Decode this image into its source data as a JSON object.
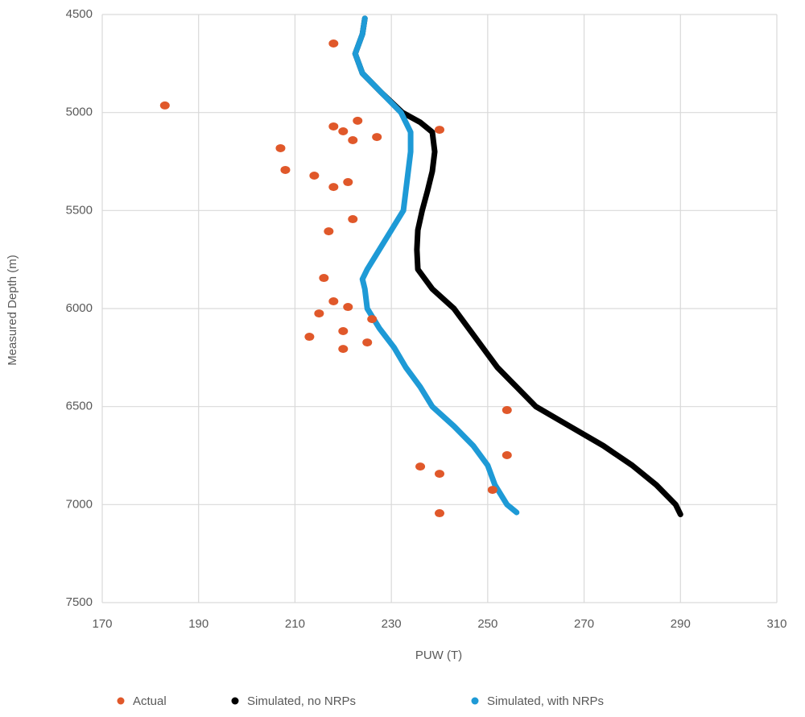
{
  "chart_data": {
    "type": "scatter",
    "xlabel": "PUW (T)",
    "ylabel": "Measured Depth (m)",
    "xlim": [
      170,
      310
    ],
    "xticks": [
      170,
      190,
      210,
      230,
      250,
      270,
      290,
      310
    ],
    "ylim": [
      4500,
      7500
    ],
    "yticks": [
      4500,
      5000,
      5500,
      6000,
      6500,
      7000,
      7500
    ],
    "y_inverted": true,
    "grid": true,
    "legend": "bottom",
    "series": [
      {
        "name": "Actual",
        "color": "#e0582a",
        "mode": "markers",
        "x": [
          218,
          183,
          240,
          218,
          220,
          223,
          222,
          227,
          207,
          208,
          214,
          221,
          218,
          222,
          217,
          216,
          218,
          221,
          215,
          226,
          220,
          213,
          225,
          220,
          254,
          254,
          236,
          240,
          251,
          240
        ],
        "y": [
          4648,
          4964,
          5088,
          5071,
          5096,
          5042,
          5141,
          5125,
          5182,
          5293,
          5322,
          5355,
          5380,
          5544,
          5606,
          5844,
          5963,
          5992,
          6025,
          6054,
          6115,
          6144,
          6173,
          6206,
          6518,
          6748,
          6806,
          6843,
          6925,
          7044
        ]
      },
      {
        "name": "Simulated, no NRPs",
        "color": "#000000",
        "mode": "line",
        "x": [
          224.5,
          224,
          222.5,
          224,
          228,
          232.3,
          236,
          238.5,
          239,
          238.5,
          237.5,
          236.4,
          235.5,
          235.3,
          235.5,
          238.5,
          243,
          246,
          249,
          252,
          256,
          260,
          267,
          274,
          280,
          285,
          289,
          290
        ],
        "y": [
          4520,
          4600,
          4700,
          4800,
          4900,
          5000,
          5050,
          5100,
          5200,
          5300,
          5400,
          5500,
          5600,
          5700,
          5800,
          5900,
          6000,
          6100,
          6200,
          6300,
          6400,
          6500,
          6600,
          6700,
          6800,
          6900,
          7000,
          7050
        ]
      },
      {
        "name": "Simulated, with NRPs",
        "color": "#1e9ad6",
        "mode": "line",
        "x": [
          224.5,
          224,
          222.5,
          224,
          228,
          232,
          234,
          234,
          233.5,
          233,
          232.5,
          230,
          227.5,
          225,
          224,
          224.5,
          225,
          227.5,
          230.6,
          233,
          236,
          238.5,
          243,
          247,
          250,
          251.5,
          254,
          256
        ],
        "y": [
          4520,
          4600,
          4700,
          4800,
          4900,
          5000,
          5100,
          5200,
          5300,
          5400,
          5500,
          5600,
          5700,
          5800,
          5850,
          5900,
          6000,
          6100,
          6200,
          6300,
          6400,
          6500,
          6600,
          6700,
          6800,
          6900,
          7000,
          7040
        ]
      }
    ]
  }
}
